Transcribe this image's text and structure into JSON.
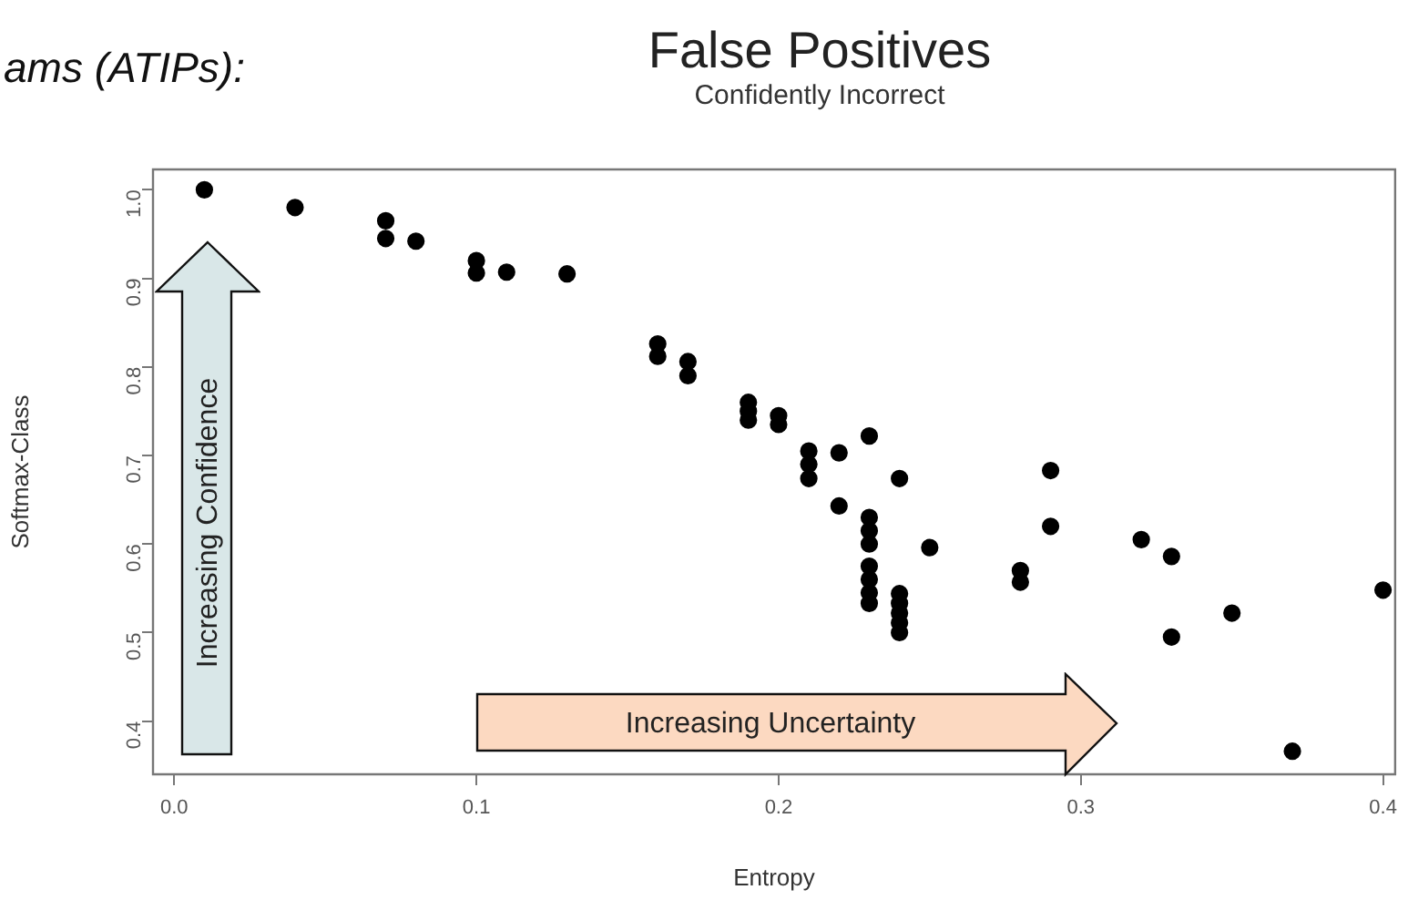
{
  "chart_data": {
    "type": "scatter",
    "title": "False Positives",
    "subtitle": "Confidently Incorrect",
    "xlabel": "Entropy",
    "ylabel": "Softmax-Class",
    "annotations": [
      "ams (ATIPs):",
      "Increasing Confidence",
      "Increasing Uncertainty"
    ],
    "series": [
      {
        "color": "#000000",
        "x": [
          0.01,
          0.04,
          0.07,
          0.07,
          0.08,
          0.1,
          0.1,
          0.11,
          0.13,
          0.16,
          0.16,
          0.17,
          0.17,
          0.19,
          0.19,
          0.19,
          0.2,
          0.2,
          0.21,
          0.21,
          0.21,
          0.22,
          0.22,
          0.23,
          0.23,
          0.23,
          0.23,
          0.23,
          0.23,
          0.23,
          0.23,
          0.24,
          0.24,
          0.24,
          0.24,
          0.24,
          0.24,
          0.25,
          0.28,
          0.28,
          0.29,
          0.29,
          0.32,
          0.33,
          0.33,
          0.35,
          0.37,
          0.4
        ],
        "values": [
          1.0,
          0.98,
          0.965,
          0.945,
          0.942,
          0.92,
          0.906,
          0.907,
          0.905,
          0.826,
          0.812,
          0.806,
          0.79,
          0.76,
          0.75,
          0.74,
          0.745,
          0.735,
          0.705,
          0.69,
          0.674,
          0.703,
          0.643,
          0.722,
          0.63,
          0.615,
          0.6,
          0.575,
          0.56,
          0.545,
          0.533,
          0.674,
          0.544,
          0.533,
          0.522,
          0.511,
          0.5,
          0.596,
          0.57,
          0.557,
          0.683,
          0.62,
          0.605,
          0.586,
          0.495,
          0.522,
          0.366,
          0.548
        ]
      }
    ],
    "xlim": [
      -0.007,
      0.404
    ],
    "xticks": [
      {
        "value": 0,
        "label": "0.0"
      },
      0.1,
      0.2,
      0.3,
      0.4
    ],
    "ylim": [
      0.34,
      1.023
    ],
    "yticks": [
      0.4,
      0.5,
      0.6,
      0.7,
      0.8,
      0.9,
      {
        "value": 1,
        "label": "1.0"
      }
    ],
    "grid": false,
    "legend": false,
    "marker": "circle"
  }
}
